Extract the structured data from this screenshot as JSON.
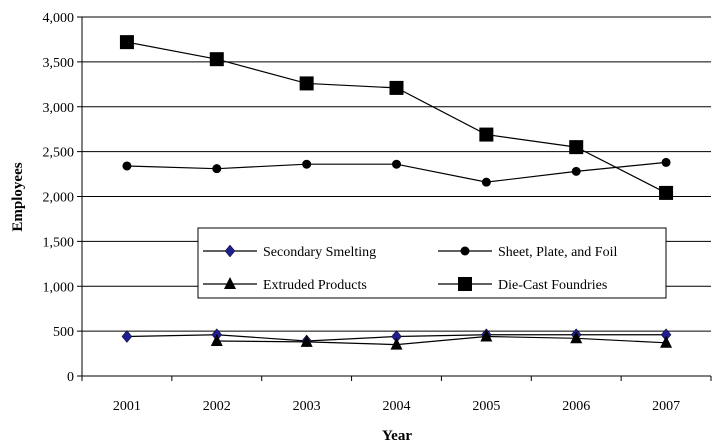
{
  "chart_data": {
    "type": "line",
    "title": "",
    "xlabel": "Year",
    "ylabel": "Employees",
    "x": [
      "2001",
      "2002",
      "2003",
      "2004",
      "2005",
      "2006",
      "2007"
    ],
    "ylim": [
      0,
      4000
    ],
    "yticks": [
      0,
      500,
      1000,
      1500,
      2000,
      2500,
      3000,
      3500,
      4000
    ],
    "ytick_labels": [
      "0",
      "500",
      "1,000",
      "1,500",
      "2,000",
      "2,500",
      "3,000",
      "3,500",
      "4,000"
    ],
    "grid": true,
    "legend_position": "center",
    "series": [
      {
        "name": "Secondary Smelting",
        "marker": "diamond",
        "color": "#1f1f8f",
        "values": [
          440,
          460,
          390,
          440,
          460,
          460,
          460
        ]
      },
      {
        "name": "Sheet, Plate, and Foil",
        "marker": "circle",
        "color": "#000000",
        "values": [
          2340,
          2310,
          2360,
          2360,
          2160,
          2280,
          2380
        ]
      },
      {
        "name": "Extruded Products",
        "marker": "triangle",
        "color": "#000000",
        "values": [
          null,
          390,
          380,
          350,
          440,
          420,
          370
        ]
      },
      {
        "name": "Die-Cast Foundries",
        "marker": "square",
        "color": "#000000",
        "values": [
          3720,
          3530,
          3260,
          3210,
          2690,
          2550,
          2040
        ]
      }
    ]
  }
}
